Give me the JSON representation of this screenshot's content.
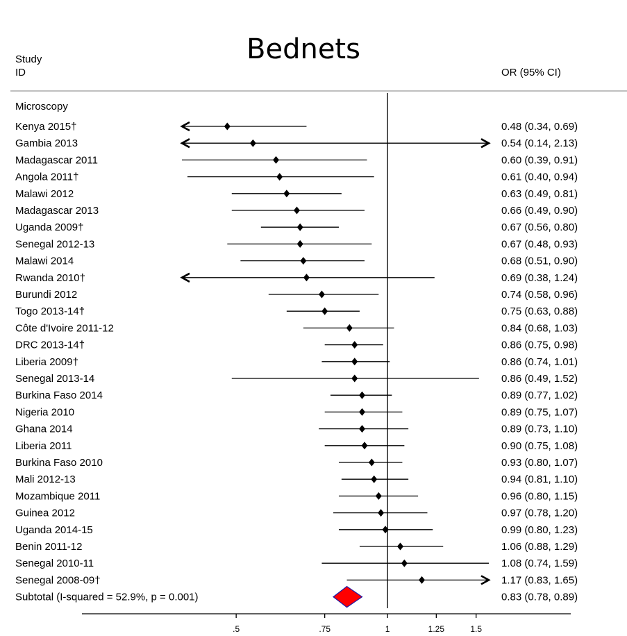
{
  "chart_data": {
    "type": "forest",
    "title": "Bednets",
    "column_headers": {
      "study": [
        "Study",
        "ID"
      ],
      "effect": "OR (95% CI)"
    },
    "group_label": "Microscopy",
    "x_scale": "log",
    "x_ticks": [
      {
        "value": 0.5,
        "label": ".5"
      },
      {
        "value": 0.75,
        "label": ".75"
      },
      {
        "value": 1,
        "label": "1"
      },
      {
        "value": 1.25,
        "label": "1.25"
      },
      {
        "value": 1.5,
        "label": "1.5"
      }
    ],
    "xlim": [
      0.4,
      1.5
    ],
    "reference_line": 1,
    "studies": [
      {
        "id": "Kenya 2015†",
        "or": 0.48,
        "lo": 0.34,
        "hi": 0.69,
        "text": "0.48 (0.34, 0.69)"
      },
      {
        "id": "Gambia 2013",
        "or": 0.54,
        "lo": 0.14,
        "hi": 2.13,
        "text": "0.54 (0.14, 2.13)"
      },
      {
        "id": "Madagascar 2011",
        "or": 0.6,
        "lo": 0.39,
        "hi": 0.91,
        "text": "0.60 (0.39, 0.91)"
      },
      {
        "id": "Angola 2011†",
        "or": 0.61,
        "lo": 0.4,
        "hi": 0.94,
        "text": "0.61 (0.40, 0.94)"
      },
      {
        "id": "Malawi 2012",
        "or": 0.63,
        "lo": 0.49,
        "hi": 0.81,
        "text": "0.63 (0.49, 0.81)"
      },
      {
        "id": "Madagascar 2013",
        "or": 0.66,
        "lo": 0.49,
        "hi": 0.9,
        "text": "0.66 (0.49, 0.90)"
      },
      {
        "id": "Uganda 2009†",
        "or": 0.67,
        "lo": 0.56,
        "hi": 0.8,
        "text": "0.67 (0.56, 0.80)"
      },
      {
        "id": "Senegal 2012-13",
        "or": 0.67,
        "lo": 0.48,
        "hi": 0.93,
        "text": "0.67 (0.48, 0.93)"
      },
      {
        "id": "Malawi 2014",
        "or": 0.68,
        "lo": 0.51,
        "hi": 0.9,
        "text": "0.68 (0.51, 0.90)"
      },
      {
        "id": "Rwanda 2010†",
        "or": 0.69,
        "lo": 0.38,
        "hi": 1.24,
        "text": "0.69 (0.38, 1.24)"
      },
      {
        "id": "Burundi 2012",
        "or": 0.74,
        "lo": 0.58,
        "hi": 0.96,
        "text": "0.74 (0.58, 0.96)"
      },
      {
        "id": "Togo 2013-14†",
        "or": 0.75,
        "lo": 0.63,
        "hi": 0.88,
        "text": "0.75 (0.63, 0.88)"
      },
      {
        "id": "Côte d'Ivoire 2011-12",
        "or": 0.84,
        "lo": 0.68,
        "hi": 1.03,
        "text": "0.84 (0.68, 1.03)"
      },
      {
        "id": "DRC 2013-14†",
        "or": 0.86,
        "lo": 0.75,
        "hi": 0.98,
        "text": "0.86 (0.75, 0.98)"
      },
      {
        "id": "Liberia 2009†",
        "or": 0.86,
        "lo": 0.74,
        "hi": 1.01,
        "text": "0.86 (0.74, 1.01)"
      },
      {
        "id": "Senegal 2013-14",
        "or": 0.86,
        "lo": 0.49,
        "hi": 1.52,
        "text": "0.86 (0.49, 1.52)"
      },
      {
        "id": "Burkina Faso 2014",
        "or": 0.89,
        "lo": 0.77,
        "hi": 1.02,
        "text": "0.89 (0.77, 1.02)"
      },
      {
        "id": "Nigeria 2010",
        "or": 0.89,
        "lo": 0.75,
        "hi": 1.07,
        "text": "0.89 (0.75, 1.07)"
      },
      {
        "id": "Ghana 2014",
        "or": 0.89,
        "lo": 0.73,
        "hi": 1.1,
        "text": "0.89 (0.73, 1.10)"
      },
      {
        "id": "Liberia 2011",
        "or": 0.9,
        "lo": 0.75,
        "hi": 1.08,
        "text": "0.90 (0.75, 1.08)"
      },
      {
        "id": "Burkina Faso 2010",
        "or": 0.93,
        "lo": 0.8,
        "hi": 1.07,
        "text": "0.93 (0.80, 1.07)"
      },
      {
        "id": "Mali 2012-13",
        "or": 0.94,
        "lo": 0.81,
        "hi": 1.1,
        "text": "0.94 (0.81, 1.10)"
      },
      {
        "id": "Mozambique 2011",
        "or": 0.96,
        "lo": 0.8,
        "hi": 1.15,
        "text": "0.96 (0.80, 1.15)"
      },
      {
        "id": "Guinea 2012",
        "or": 0.97,
        "lo": 0.78,
        "hi": 1.2,
        "text": "0.97 (0.78, 1.20)"
      },
      {
        "id": "Uganda 2014-15",
        "or": 0.99,
        "lo": 0.8,
        "hi": 1.23,
        "text": "0.99 (0.80, 1.23)"
      },
      {
        "id": "Benin 2011-12",
        "or": 1.06,
        "lo": 0.88,
        "hi": 1.29,
        "text": "1.06 (0.88, 1.29)"
      },
      {
        "id": "Senegal 2010-11",
        "or": 1.08,
        "lo": 0.74,
        "hi": 1.59,
        "text": "1.08 (0.74, 1.59)"
      },
      {
        "id": "Senegal 2008-09†",
        "or": 1.17,
        "lo": 0.83,
        "hi": 1.65,
        "text": "1.17 (0.83, 1.65)"
      }
    ],
    "subtotal": {
      "label": "Subtotal  (I-squared = 52.9%, p = 0.001)",
      "or": 0.83,
      "lo": 0.78,
      "hi": 0.89,
      "text": "0.83 (0.78, 0.89)"
    },
    "colors": {
      "subtotal_diamond": "#ff0000",
      "subtotal_edge": "#1a1aa8",
      "header_rule": "#bfbfbf"
    }
  }
}
